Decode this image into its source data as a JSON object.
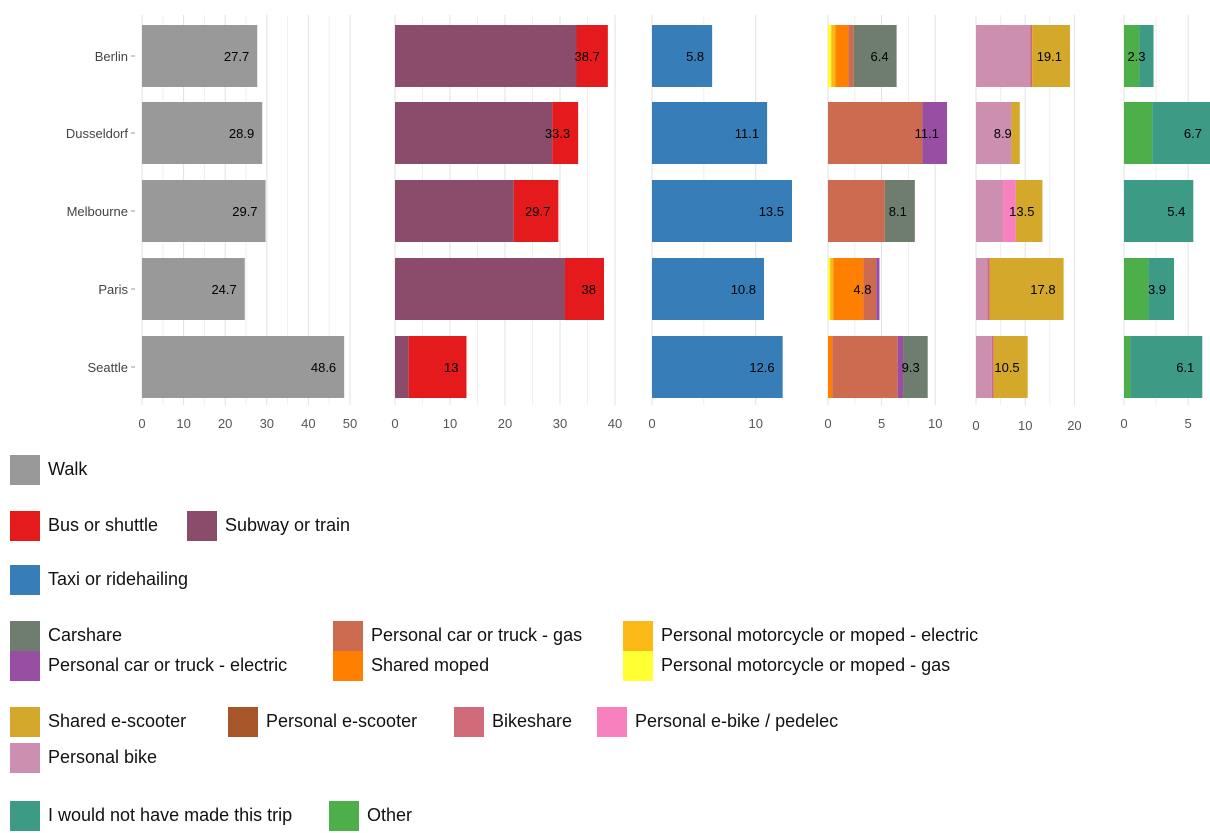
{
  "chart_data": {
    "type": "bar",
    "orientation": "horizontal",
    "stacked": true,
    "grid": true,
    "categories": [
      "Berlin",
      "Dusseldorf",
      "Melbourne",
      "Paris",
      "Seattle"
    ],
    "colors": {
      "Walk": "#999999",
      "Bus or shuttle": "#e41a1c",
      "Subway or train": "#8b4c6b",
      "Taxi or ridehailing": "#377eb8",
      "Carshare": "#6f7d6f",
      "Personal car or truck - electric": "#984ea3",
      "Personal car or truck - gas": "#cc6b4f",
      "Shared moped": "#ff7f00",
      "Personal motorcycle or moped - electric": "#fbb917",
      "Personal motorcycle or moped - gas": "#ffff33",
      "Shared e-scooter": "#d4a82a",
      "Personal e-scooter": "#a65628",
      "Bikeshare": "#d06b79",
      "Personal e-bike / pedelec": "#f781bf",
      "Personal bike": "#cc8fb0",
      "I would not have made this trip": "#3d9a84",
      "Other": "#4daf4a"
    },
    "panels": [
      {
        "xlim": [
          0,
          50
        ],
        "ticks": [
          0,
          10,
          20,
          30,
          40,
          50
        ],
        "totals": [
          27.7,
          28.9,
          29.7,
          24.7,
          48.6
        ],
        "series": [
          {
            "name": "Walk",
            "values": [
              27.7,
              28.9,
              29.7,
              24.7,
              48.6
            ]
          }
        ]
      },
      {
        "xlim": [
          0,
          40
        ],
        "ticks": [
          0,
          10,
          20,
          30,
          40
        ],
        "totals": [
          38.7,
          33.3,
          29.7,
          38,
          13
        ],
        "series": [
          {
            "name": "Subway or train",
            "values": [
              33.0,
              28.6,
              21.6,
              30.9,
              2.5
            ]
          },
          {
            "name": "Bus or shuttle",
            "values": [
              5.7,
              4.7,
              8.1,
              7.1,
              10.5
            ]
          }
        ]
      },
      {
        "xlim": [
          0,
          13.5
        ],
        "ticks": [
          0,
          10
        ],
        "totals": [
          5.8,
          11.1,
          13.5,
          10.8,
          12.6
        ],
        "series": [
          {
            "name": "Taxi or ridehailing",
            "values": [
              5.8,
              11.1,
              13.5,
              10.8,
              12.6
            ]
          }
        ]
      },
      {
        "xlim": [
          0,
          11.1
        ],
        "ticks": [
          0,
          5,
          10
        ],
        "totals": [
          6.4,
          11.1,
          8.1,
          4.8,
          9.3
        ],
        "series": [
          {
            "name": "Personal motorcycle or moped - gas",
            "values": [
              0.3,
              0,
              0,
              0.2,
              0
            ]
          },
          {
            "name": "Personal motorcycle or moped - electric",
            "values": [
              0.4,
              0,
              0,
              0.3,
              0
            ]
          },
          {
            "name": "Shared moped",
            "values": [
              1.2,
              0,
              0,
              2.8,
              0.4
            ]
          },
          {
            "name": "Personal car or truck - gas",
            "values": [
              0.5,
              8.8,
              5.3,
              1.2,
              6.1
            ]
          },
          {
            "name": "Personal car or truck - electric",
            "values": [
              0,
              2.3,
              0,
              0.3,
              0.5
            ]
          },
          {
            "name": "Carshare",
            "values": [
              4.0,
              0,
              2.8,
              0,
              2.3
            ]
          }
        ]
      },
      {
        "xlim": [
          0,
          19.1
        ],
        "ticks": [
          0,
          10,
          20
        ],
        "totals": [
          19.1,
          8.9,
          13.5,
          17.8,
          10.5
        ],
        "series": [
          {
            "name": "Personal bike",
            "values": [
              11.0,
              7.2,
              5.5,
              2.3,
              3.2
            ]
          },
          {
            "name": "Bikeshare",
            "values": [
              0.4,
              0,
              0,
              0.5,
              0.4
            ]
          },
          {
            "name": "Personal e-bike / pedelec",
            "values": [
              0,
              0,
              2.6,
              0,
              0
            ]
          },
          {
            "name": "Shared e-scooter",
            "values": [
              7.7,
              1.7,
              5.4,
              15.0,
              6.9
            ]
          }
        ]
      },
      {
        "xlim": [
          0,
          6.7
        ],
        "ticks": [
          0,
          5
        ],
        "totals": [
          2.3,
          6.7,
          5.4,
          3.9,
          6.1
        ],
        "series": [
          {
            "name": "Other",
            "values": [
              1.2,
              2.2,
              0,
              1.9,
              0.5
            ]
          },
          {
            "name": "I would not have made this trip",
            "values": [
              1.1,
              4.5,
              5.4,
              2.0,
              5.6
            ]
          }
        ]
      }
    ]
  },
  "legend": {
    "groups": [
      {
        "items": [
          {
            "label": "Walk",
            "color": "#999999"
          }
        ]
      },
      {
        "items": [
          {
            "label": "Bus or shuttle",
            "color": "#e41a1c"
          },
          {
            "label": "Subway or train",
            "color": "#8b4c6b"
          }
        ]
      },
      {
        "items": [
          {
            "label": "Taxi or ridehailing",
            "color": "#377eb8"
          }
        ]
      },
      {
        "items": [
          {
            "label": "Carshare",
            "color": "#6f7d6f"
          },
          {
            "label": "Personal car or truck - gas",
            "color": "#cc6b4f"
          },
          {
            "label": "Personal motorcycle or moped - electric",
            "color": "#fbb917"
          },
          {
            "label": "Personal car or truck - electric",
            "color": "#984ea3"
          },
          {
            "label": "Shared moped",
            "color": "#ff7f00"
          },
          {
            "label": "Personal motorcycle or moped - gas",
            "color": "#ffff33"
          }
        ]
      },
      {
        "items": [
          {
            "label": "Shared e-scooter",
            "color": "#d4a82a"
          },
          {
            "label": "Personal e-scooter",
            "color": "#a65628"
          },
          {
            "label": "Bikeshare",
            "color": "#d06b79"
          },
          {
            "label": "Personal e-bike / pedelec",
            "color": "#f781bf"
          },
          {
            "label": "Personal bike",
            "color": "#cc8fb0"
          }
        ]
      },
      {
        "items": [
          {
            "label": "I would not have made this trip",
            "color": "#3d9a84"
          },
          {
            "label": "Other",
            "color": "#4daf4a"
          }
        ]
      }
    ]
  }
}
